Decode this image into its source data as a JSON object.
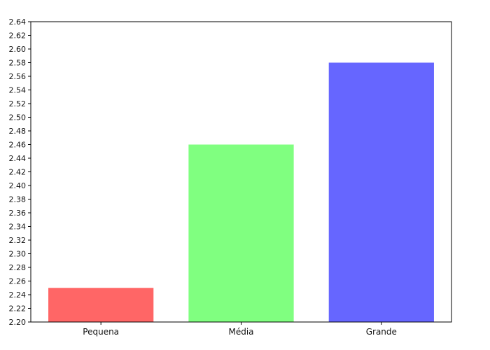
{
  "chart_data": {
    "type": "bar",
    "categories": [
      "Pequena",
      "Média",
      "Grande"
    ],
    "values": [
      2.25,
      2.46,
      2.58
    ],
    "colors": [
      "#ff6666",
      "#80ff80",
      "#6666ff"
    ],
    "title": "",
    "xlabel": "",
    "ylabel": "",
    "ylim": [
      2.2,
      2.64
    ],
    "ytick_step": 0.02,
    "ytick_decimals": 2,
    "grid": false,
    "legend": "none"
  }
}
